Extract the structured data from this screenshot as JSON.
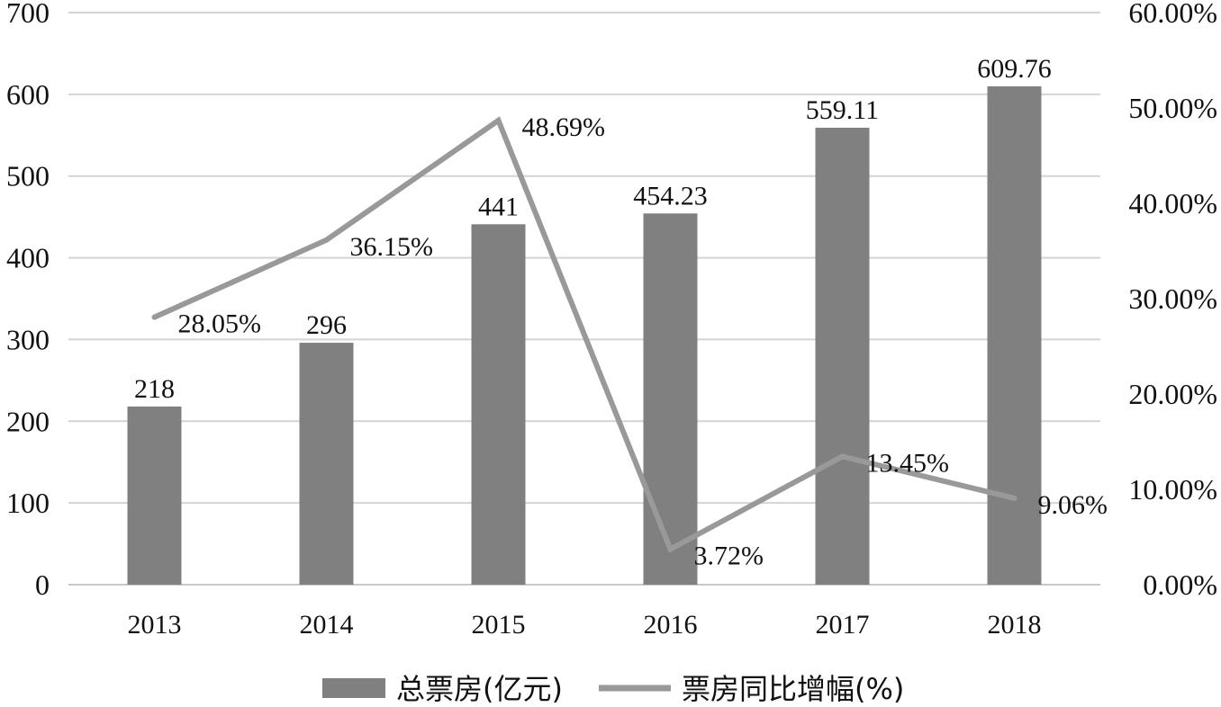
{
  "chart_data": {
    "type": "bar",
    "categories": [
      "2013",
      "2014",
      "2015",
      "2016",
      "2017",
      "2018"
    ],
    "series": [
      {
        "name": "总票房(亿元)",
        "type": "bar",
        "axis": "left",
        "values": [
          218,
          296,
          441,
          454.23,
          559.11,
          609.76
        ],
        "labels": [
          "218",
          "296",
          "441",
          "454.23",
          "559.11",
          "609.76"
        ],
        "color": "#808080"
      },
      {
        "name": "票房同比增幅(%)",
        "type": "line",
        "axis": "right",
        "values": [
          28.05,
          36.15,
          48.69,
          3.72,
          13.45,
          9.06
        ],
        "labels": [
          "28.05%",
          "36.15%",
          "48.69%",
          "3.72%",
          "13.45%",
          "9.06%"
        ],
        "color": "#999999"
      }
    ],
    "y_left": {
      "ylim": [
        0,
        700
      ],
      "ticks": [
        "0",
        "100",
        "200",
        "300",
        "400",
        "500",
        "600",
        "700"
      ]
    },
    "y_right": {
      "ylim": [
        0,
        60
      ],
      "ticks": [
        "0.00%",
        "10.00%",
        "20.00%",
        "30.00%",
        "40.00%",
        "50.00%",
        "60.00%"
      ]
    },
    "grid": true,
    "legend_position": "bottom"
  }
}
